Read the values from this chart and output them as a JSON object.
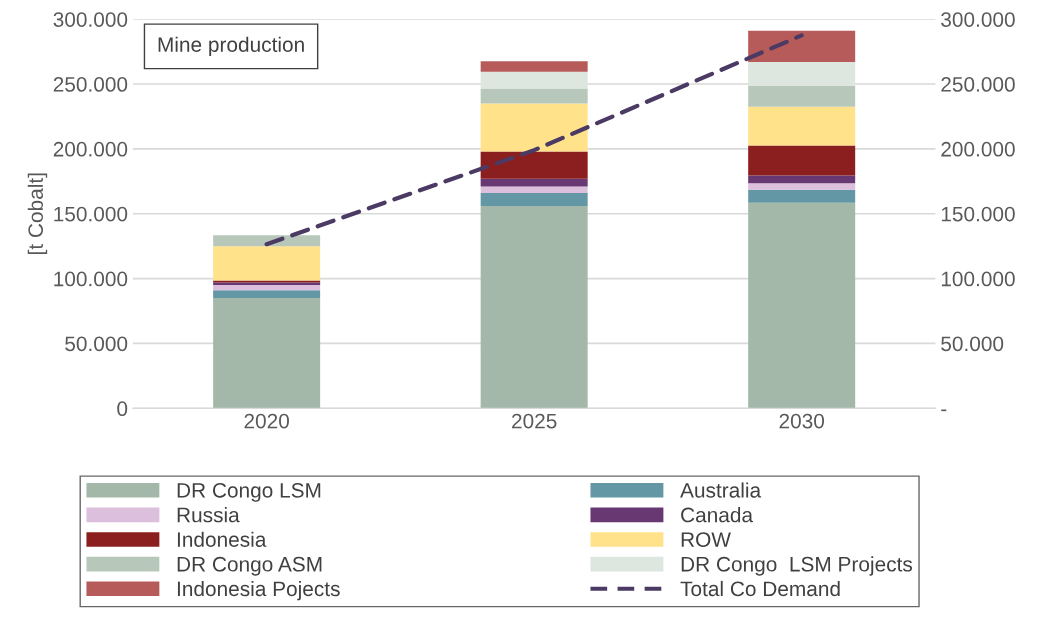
{
  "chart_data": {
    "type": "bar",
    "stacked": true,
    "ylabel": "[t Cobalt]",
    "annotations": [
      "Mine production"
    ],
    "categories": [
      "2020",
      "2025",
      "2030"
    ],
    "series": [
      {
        "name": "DR Congo LSM",
        "color": "#a3b8a8",
        "values": [
          85000,
          156000,
          158500
        ]
      },
      {
        "name": "Australia",
        "color": "#6497a5",
        "values": [
          6000,
          10000,
          10000
        ]
      },
      {
        "name": "Russia",
        "color": "#dcbedd",
        "values": [
          4000,
          5000,
          5000
        ]
      },
      {
        "name": "Canada",
        "color": "#673872",
        "values": [
          2000,
          6000,
          6000
        ]
      },
      {
        "name": "Indonesia",
        "color": "#8b1e1e",
        "values": [
          1500,
          21000,
          23000
        ]
      },
      {
        "name": "ROW",
        "color": "#ffe289",
        "values": [
          26500,
          37000,
          30000
        ]
      },
      {
        "name": "DR Congo ASM",
        "color": "#b7c8bb",
        "values": [
          8500,
          11500,
          16000
        ]
      },
      {
        "name": "DR Congo  LSM Projects",
        "color": "#dde6df",
        "values": [
          0,
          13000,
          18500
        ]
      },
      {
        "name": "Indonesia Pojects",
        "color": "#b65a5a",
        "values": [
          0,
          8000,
          24000
        ]
      },
      {
        "name": "Total Co Demand",
        "type": "line",
        "color": "#4b3a63",
        "line_style": "dashed",
        "marker": "none",
        "values": [
          126500,
          199000,
          287500
        ]
      }
    ],
    "ylim": [
      0,
      300000
    ],
    "yticks": [
      {
        "value": 0,
        "label": "0"
      },
      {
        "value": 50000,
        "label": "50.000"
      },
      {
        "value": 100000,
        "label": "100.000"
      },
      {
        "value": 150000,
        "label": "150.000"
      },
      {
        "value": 200000,
        "label": "200.000"
      },
      {
        "value": 250000,
        "label": "250.000"
      },
      {
        "value": 300000,
        "label": "300.000"
      }
    ],
    "y2lim": [
      0,
      300000
    ],
    "y2ticks": [
      {
        "value": 0,
        "label": "-"
      },
      {
        "value": 50000,
        "label": "50.000"
      },
      {
        "value": 100000,
        "label": "100.000"
      },
      {
        "value": 150000,
        "label": "150.000"
      },
      {
        "value": 200000,
        "label": "200.000"
      },
      {
        "value": 250000,
        "label": "250.000"
      },
      {
        "value": 300000,
        "label": "300.000"
      }
    ],
    "grid": "y",
    "legend": "bottom"
  }
}
